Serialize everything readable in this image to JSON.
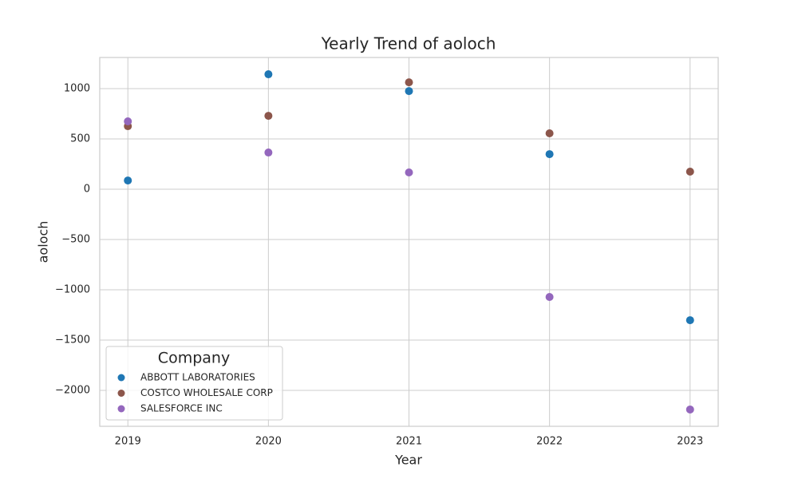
{
  "chart_data": {
    "type": "scatter",
    "title": "Yearly Trend of aoloch",
    "x_label": "Year",
    "y_label": "aoloch",
    "x": [
      2019,
      2020,
      2021,
      2022,
      2023
    ],
    "series": [
      {
        "name": "ABBOTT LABORATORIES",
        "color": "#1f77b4",
        "values": [
          87,
          1143,
          976,
          349,
          -1302
        ]
      },
      {
        "name": "COSTCO WHOLESALE CORP",
        "color": "#8c564b",
        "values": [
          627,
          730,
          1063,
          556,
          175
        ]
      },
      {
        "name": "SALESFORCE INC",
        "color": "#9467bd",
        "values": [
          675,
          365,
          167,
          -1071,
          -2190
        ]
      }
    ],
    "xlim": [
      2018.8,
      2023.2
    ],
    "xticks": [
      2019,
      2020,
      2021,
      2022,
      2023
    ],
    "ylim": [
      -2357,
      1310
    ],
    "yticks": [
      {
        "value": -2000,
        "label": "−2000"
      },
      {
        "value": -1500,
        "label": "−1500"
      },
      {
        "value": -1000,
        "label": "−1000"
      },
      {
        "value": -500,
        "label": "−500"
      },
      0,
      500,
      1000
    ],
    "grid": true,
    "legend_title": "Company",
    "legend_position": "lower left"
  }
}
